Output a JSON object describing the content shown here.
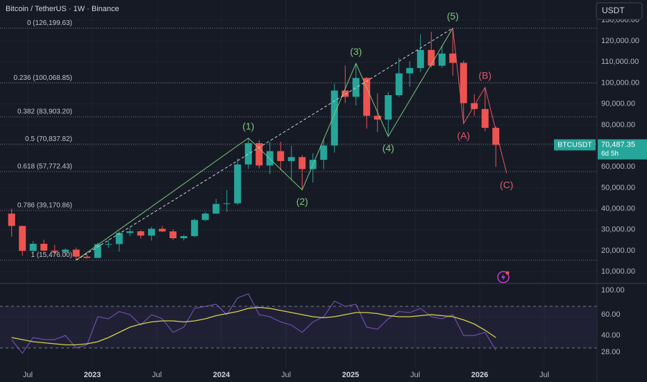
{
  "header": {
    "symbol_title": "Bitcoin / TetherUS · 1W · Binance",
    "currency_button": "USDT"
  },
  "chart_data": [
    {
      "type": "candlestick",
      "x": [
        "2022-05",
        "2022-06",
        "2022-07",
        "2022-08",
        "2022-09",
        "2022-10",
        "2022-11",
        "2022-12",
        "2023-01",
        "2023-02",
        "2023-03",
        "2023-04",
        "2023-05",
        "2023-06",
        "2023-07",
        "2023-08",
        "2023-09",
        "2023-10",
        "2023-11",
        "2023-12",
        "2024-01",
        "2024-02",
        "2024-03",
        "2024-04",
        "2024-05",
        "2024-06",
        "2024-07",
        "2024-08",
        "2024-09",
        "2024-10",
        "2024-11",
        "2024-12",
        "2025-01",
        "2025-02",
        "2025-03",
        "2025-04",
        "2025-05",
        "2025-06",
        "2025-07",
        "2025-08",
        "2025-09",
        "2025-10",
        "2025-11",
        "2025-12",
        "2026-01",
        "2026-02"
      ],
      "open": [
        37700,
        31800,
        19900,
        23300,
        20050,
        19400,
        20500,
        17150,
        16550,
        23100,
        23150,
        28450,
        29250,
        27200,
        30450,
        29200,
        25950,
        26950,
        34650,
        37700,
        42300,
        42600,
        61150,
        71300,
        60650,
        67500,
        62750,
        64650,
        58950,
        63350,
        70200,
        96400,
        93400,
        102400,
        84350,
        82550,
        94200,
        104600,
        107150,
        115750,
        108250,
        114050,
        109600,
        90400,
        87600,
        78600
      ],
      "high": [
        40000,
        31900,
        24600,
        25200,
        22800,
        21100,
        21450,
        18400,
        23900,
        25250,
        29200,
        31000,
        29800,
        31400,
        31800,
        30200,
        27450,
        35200,
        38450,
        44700,
        48950,
        64000,
        73750,
        72800,
        71950,
        72000,
        70000,
        65600,
        66500,
        73600,
        99600,
        108350,
        109350,
        102750,
        95000,
        95750,
        111950,
        110400,
        123200,
        124450,
        117900,
        126199.63,
        110650,
        94600,
        97900,
        79300
      ],
      "low": [
        26700,
        17600,
        18800,
        19600,
        18200,
        18200,
        15476,
        16250,
        16500,
        21350,
        19550,
        26900,
        25800,
        24800,
        28850,
        25150,
        24900,
        26550,
        34100,
        37600,
        38550,
        41900,
        59000,
        59200,
        56550,
        58400,
        53500,
        49000,
        52550,
        58900,
        66800,
        90500,
        89250,
        78250,
        76600,
        74500,
        93350,
        98200,
        105250,
        107350,
        107250,
        103500,
        80600,
        84400,
        77000,
        60000
      ],
      "close": [
        31800,
        19900,
        23300,
        20050,
        19400,
        20500,
        17150,
        16550,
        23100,
        23150,
        28450,
        29250,
        27200,
        30450,
        29200,
        25950,
        26950,
        34650,
        37700,
        42300,
        42600,
        61150,
        71300,
        60650,
        67500,
        62750,
        64650,
        58950,
        63350,
        70200,
        96400,
        93400,
        102400,
        84350,
        82550,
        94200,
        104600,
        107150,
        115750,
        108250,
        114050,
        109600,
        90400,
        87600,
        78600,
        70487.35
      ],
      "up_color": "#26a69a",
      "down_color": "#ef5350",
      "ylim": [
        5400,
        139600
      ],
      "yticks": [
        {
          "value": 10000,
          "label": "10,000.00"
        },
        {
          "value": 20000,
          "label": "20,000.00"
        },
        {
          "value": 30000,
          "label": "30,000.00"
        },
        {
          "value": 40000,
          "label": "40,000.00"
        },
        {
          "value": 50000,
          "label": "50,000.00"
        },
        {
          "value": 60000,
          "label": "60,000.00"
        },
        {
          "value": 70000,
          "label": "70,000.00"
        },
        {
          "value": 80000,
          "label": "80,000.00"
        },
        {
          "value": 90000,
          "label": "90,000.00"
        },
        {
          "value": 100000,
          "label": "100,000.00"
        },
        {
          "value": 110000,
          "label": "110,000.00"
        },
        {
          "value": 120000,
          "label": "120,000.00"
        },
        {
          "value": 130000,
          "label": "130,000.00"
        }
      ],
      "xticks": [
        {
          "value": "2022-07",
          "label": "Jul"
        },
        {
          "value": "2023-01",
          "label": "2023"
        },
        {
          "value": "2023-07",
          "label": "Jul"
        },
        {
          "value": "2024-01",
          "label": "2024"
        },
        {
          "value": "2024-07",
          "label": "Jul"
        },
        {
          "value": "2025-01",
          "label": "2025"
        },
        {
          "value": "2025-07",
          "label": "Jul"
        },
        {
          "value": "2026-01",
          "label": "2026"
        },
        {
          "value": "2026-07",
          "label": "Jul"
        }
      ],
      "fib_levels": [
        {
          "value": 126199.63,
          "label": "0 (126,199.63)"
        },
        {
          "value": 100068.85,
          "label": "0.236 (100,068.85)"
        },
        {
          "value": 83903.2,
          "label": "0.382 (83,903.20)"
        },
        {
          "value": 70837.82,
          "label": "0.5 (70,837.82)"
        },
        {
          "value": 57772.43,
          "label": "0.618 (57,772.43)"
        },
        {
          "value": 39170.86,
          "label": "0.786 (39,170.86)"
        },
        {
          "value": 15476.0,
          "label": "1 (15,476.00)"
        }
      ],
      "waves": [
        {
          "color": "#7ec87a",
          "x": [
            "2022-11",
            "2024-03",
            "2024-08",
            "2025-01",
            "2025-04",
            "2025-10"
          ],
          "y": [
            15476,
            73750,
            49000,
            109350,
            74500,
            126199.63
          ],
          "labels": [
            null,
            "(1)",
            "(2)",
            "(3)",
            "(4)",
            "(5)"
          ]
        },
        {
          "color": "#e05a6a",
          "x": [
            "2025-10",
            "2025-11",
            "2026-01",
            "2026-03"
          ],
          "y": [
            126199.63,
            80600,
            97900,
            57000
          ],
          "labels": [
            null,
            "(A)",
            "(B)",
            "(C)"
          ]
        }
      ],
      "symbol": "BTCUSDT",
      "last_price": {
        "value": 70487.35,
        "label": "70,487.35"
      },
      "countdown": "6d 5h"
    },
    {
      "type": "line",
      "x": [
        "2022-05",
        "2022-06",
        "2022-07",
        "2022-08",
        "2022-09",
        "2022-10",
        "2022-11",
        "2022-12",
        "2023-01",
        "2023-02",
        "2023-03",
        "2023-04",
        "2023-05",
        "2023-06",
        "2023-07",
        "2023-08",
        "2023-09",
        "2023-10",
        "2023-11",
        "2023-12",
        "2024-01",
        "2024-02",
        "2024-03",
        "2024-04",
        "2024-05",
        "2024-06",
        "2024-07",
        "2024-08",
        "2024-09",
        "2024-10",
        "2024-11",
        "2024-12",
        "2025-01",
        "2025-02",
        "2025-03",
        "2025-04",
        "2025-05",
        "2025-06",
        "2025-07",
        "2025-08",
        "2025-09",
        "2025-10",
        "2025-11",
        "2025-12",
        "2026-01",
        "2026-02"
      ],
      "series": [
        {
          "color": "#7e57c2",
          "values": [
            38,
            25,
            40,
            38,
            38,
            42,
            30,
            33,
            60,
            58,
            65,
            62,
            52,
            62,
            58,
            45,
            50,
            68,
            70,
            72,
            62,
            78,
            82,
            62,
            60,
            55,
            52,
            45,
            55,
            60,
            75,
            70,
            72,
            50,
            48,
            58,
            65,
            64,
            68,
            60,
            58,
            62,
            42,
            42,
            45,
            28
          ]
        },
        {
          "color": "#d4d44a",
          "values": [
            40,
            38,
            36,
            35,
            34,
            33,
            33,
            34,
            36,
            40,
            45,
            50,
            53,
            55,
            56,
            56,
            55,
            56,
            58,
            61,
            63,
            65,
            68,
            69,
            68,
            66,
            64,
            62,
            60,
            59,
            60,
            62,
            64,
            64,
            63,
            61,
            60,
            60,
            61,
            62,
            61,
            60,
            57,
            53,
            47,
            40
          ]
        }
      ],
      "ylim": [
        16,
        90.7
      ],
      "bands": [
        70,
        30
      ],
      "yticks": [
        {
          "value": 60,
          "label": "60.00"
        },
        {
          "value": 40,
          "label": "40.00"
        }
      ],
      "pane_max_label": "100.00",
      "last_value": {
        "value": 28,
        "label": "28.00"
      }
    }
  ]
}
